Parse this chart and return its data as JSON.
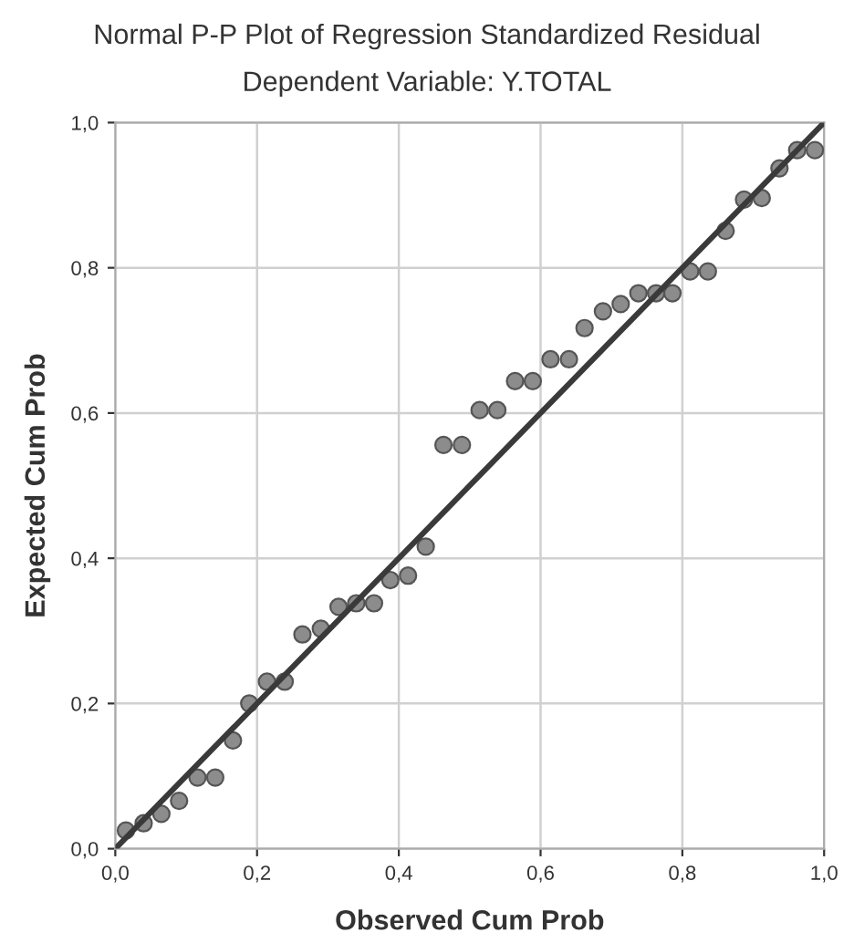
{
  "chart_data": {
    "type": "scatter",
    "title": "Normal P-P Plot of Regression Standardized Residual",
    "subtitle": "Dependent Variable: Y.TOTAL",
    "xlabel": "Observed Cum Prob",
    "ylabel": "Expected Cum Prob",
    "xlim": [
      0,
      1
    ],
    "ylim": [
      0,
      1
    ],
    "xticks": [
      {
        "value": 0,
        "label": "0,0"
      },
      {
        "value": 0.2,
        "label": "0,2"
      },
      {
        "value": 0.4,
        "label": "0,4"
      },
      {
        "value": 0.6,
        "label": "0,6"
      },
      {
        "value": 0.8,
        "label": "0,8"
      },
      {
        "value": 1,
        "label": "1,0"
      }
    ],
    "yticks": [
      {
        "value": 0,
        "label": "0,0"
      },
      {
        "value": 0.2,
        "label": "0,2"
      },
      {
        "value": 0.4,
        "label": "0,4"
      },
      {
        "value": 0.6,
        "label": "0,6"
      },
      {
        "value": 0.8,
        "label": "0,8"
      },
      {
        "value": 1,
        "label": "1,0"
      }
    ],
    "grid": true,
    "marker": "circle",
    "series": [
      {
        "color": "#8c8c8c",
        "x": [
          0.015,
          0.04,
          0.065,
          0.09,
          0.116,
          0.141,
          0.166,
          0.189,
          0.214,
          0.239,
          0.264,
          0.29,
          0.315,
          0.34,
          0.365,
          0.388,
          0.413,
          0.438,
          0.463,
          0.489,
          0.514,
          0.539,
          0.564,
          0.589,
          0.614,
          0.64,
          0.662,
          0.688,
          0.713,
          0.738,
          0.763,
          0.786,
          0.811,
          0.836,
          0.861,
          0.887,
          0.912,
          0.937,
          0.962,
          0.987
        ],
        "values": [
          0.025,
          0.035,
          0.048,
          0.066,
          0.098,
          0.098,
          0.149,
          0.2,
          0.23,
          0.23,
          0.295,
          0.303,
          0.333,
          0.338,
          0.338,
          0.37,
          0.376,
          0.416,
          0.556,
          0.556,
          0.604,
          0.604,
          0.644,
          0.644,
          0.674,
          0.674,
          0.717,
          0.74,
          0.75,
          0.765,
          0.765,
          0.765,
          0.795,
          0.795,
          0.851,
          0.894,
          0.896,
          0.937,
          0.962,
          0.962
        ]
      },
      {
        "type": "line",
        "marker": "none",
        "color": "#3a3a3a",
        "x": [
          0,
          1
        ],
        "values": [
          0,
          1
        ]
      }
    ]
  }
}
